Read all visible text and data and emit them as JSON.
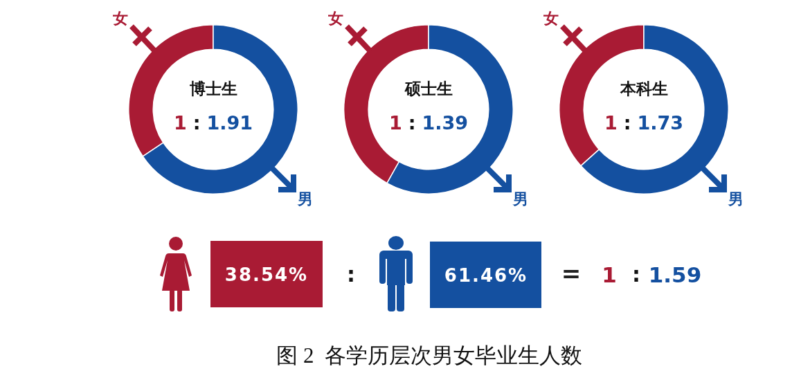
{
  "chart_data": [
    {
      "type": "donut",
      "title": "博士生",
      "categories": [
        "女",
        "男"
      ],
      "values": [
        1,
        1.91
      ],
      "colors": [
        "#a91b34",
        "#1450a0"
      ],
      "data_labels": true,
      "annotations": [
        ":"
      ]
    },
    {
      "type": "donut",
      "title": "硕士生",
      "categories": [
        "女",
        "男"
      ],
      "values": [
        1,
        1.39
      ],
      "colors": [
        "#a91b34",
        "#1450a0"
      ],
      "data_labels": true,
      "annotations": [
        ":"
      ]
    },
    {
      "type": "donut",
      "title": "本科生",
      "categories": [
        "女",
        "男"
      ],
      "values": [
        1,
        1.73
      ],
      "colors": [
        "#a91b34",
        "#1450a0"
      ],
      "data_labels": true,
      "annotations": [
        ":"
      ]
    },
    {
      "type": "other",
      "colors": [
        "#a91b34",
        "#1450a0"
      ],
      "annotations": [
        "38.54%",
        ":",
        "61.46%",
        "=",
        "1",
        ":",
        "1.59",
        "图 2  各学历层次男女毕业生人数"
      ]
    }
  ]
}
